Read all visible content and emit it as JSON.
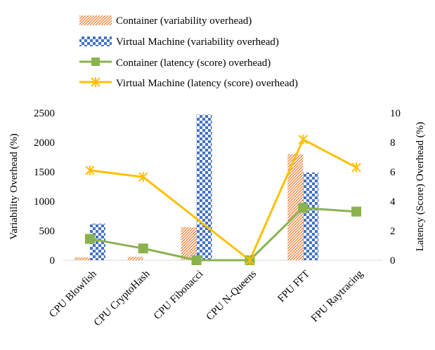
{
  "chart_data": {
    "type": "bar",
    "title": "",
    "xlabel": "",
    "ylabel": "Variability Overhead (%)",
    "y2label": "Latency (Score) Overhead (%)",
    "categories": [
      "CPU Blowfish",
      "CPU CryptoHash",
      "CPU Fibonacci",
      "CPU N-Queens",
      "FPU FFT",
      "FPU Raytracing"
    ],
    "ylim": [
      0,
      2500
    ],
    "y2lim": [
      0,
      10
    ],
    "yticks": [
      "0",
      "500",
      "1000",
      "1500",
      "2000",
      "2500"
    ],
    "y2ticks": [
      "0",
      "2",
      "4",
      "6",
      "8",
      "10"
    ],
    "legend_position": "top",
    "series": [
      {
        "name": "Container (variability overhead)",
        "kind": "bar",
        "axis": "left",
        "color": "#ED7D31",
        "pattern": "diagonal-hatch",
        "values": [
          50,
          60,
          560,
          0,
          1800,
          0
        ]
      },
      {
        "name": "Virtual Machine (variability overhead)",
        "kind": "bar",
        "axis": "left",
        "color": "#4472C4",
        "pattern": "checkerboard",
        "values": [
          620,
          0,
          2470,
          0,
          1490,
          0
        ]
      },
      {
        "name": "Container (latency (score) overhead)",
        "kind": "line",
        "axis": "right",
        "color": "#8AB24F",
        "marker": "square",
        "values": [
          1.45,
          0.8,
          0.0,
          0.0,
          3.55,
          3.3
        ]
      },
      {
        "name": "Virtual Machine (latency (score) overhead)",
        "kind": "line",
        "axis": "right",
        "color": "#FFC000",
        "marker": "star",
        "values": [
          6.1,
          5.65,
          null,
          0.0,
          8.2,
          6.3
        ]
      }
    ]
  }
}
